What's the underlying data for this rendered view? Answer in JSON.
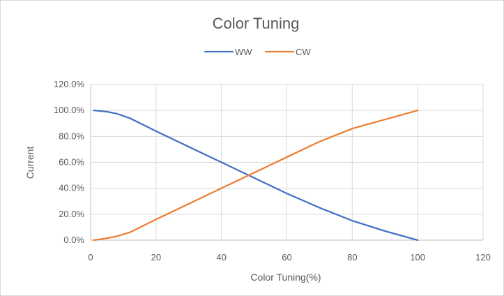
{
  "chart_data": {
    "type": "line",
    "title": "Color Tuning",
    "xlabel": "Color Tuning(%)",
    "ylabel": "Current",
    "xlim": [
      0,
      120
    ],
    "ylim": [
      0,
      1.2
    ],
    "x_ticks": [
      "0",
      "20",
      "40",
      "60",
      "80",
      "100",
      "120"
    ],
    "y_ticks": [
      "0.0%",
      "20.0%",
      "40.0%",
      "60.0%",
      "80.0%",
      "100.0%",
      "120.0%"
    ],
    "grid": "vertical-and-horizontal",
    "legend_position": "top",
    "series": [
      {
        "name": "WW",
        "color": "#4472C4",
        "points": [
          [
            1,
            1.0
          ],
          [
            5,
            0.99
          ],
          [
            8,
            0.975
          ],
          [
            12,
            0.94
          ],
          [
            20,
            0.84
          ],
          [
            30,
            0.72
          ],
          [
            40,
            0.6
          ],
          [
            50,
            0.48
          ],
          [
            60,
            0.36
          ],
          [
            70,
            0.25
          ],
          [
            80,
            0.15
          ],
          [
            90,
            0.07
          ],
          [
            100,
            0.0
          ]
        ]
      },
      {
        "name": "CW",
        "color": "#ED7D31",
        "points": [
          [
            1,
            0.0
          ],
          [
            5,
            0.015
          ],
          [
            8,
            0.03
          ],
          [
            12,
            0.06
          ],
          [
            20,
            0.16
          ],
          [
            30,
            0.28
          ],
          [
            40,
            0.4
          ],
          [
            50,
            0.52
          ],
          [
            60,
            0.64
          ],
          [
            70,
            0.76
          ],
          [
            80,
            0.86
          ],
          [
            90,
            0.93
          ],
          [
            100,
            1.0
          ]
        ]
      }
    ]
  }
}
